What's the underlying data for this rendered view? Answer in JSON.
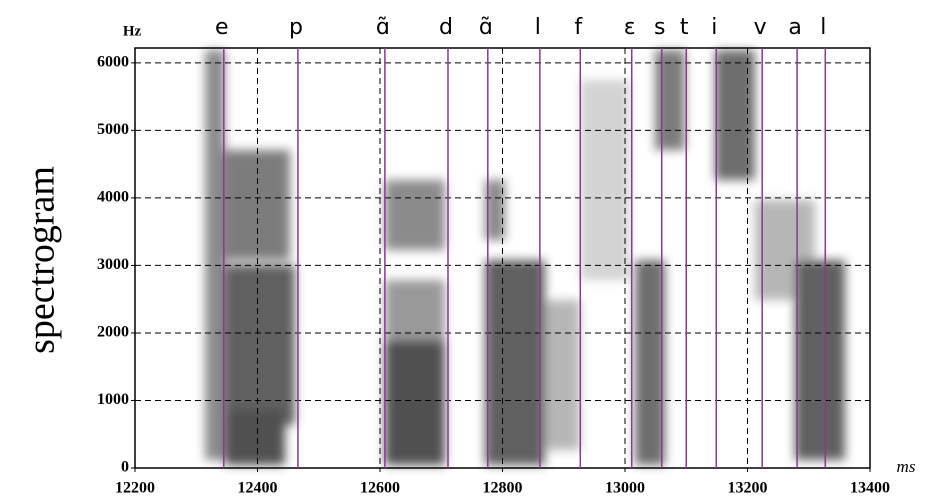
{
  "chart_data": {
    "type": "spectrogram",
    "y_label": "spectrogram",
    "y_unit": "Hz",
    "x_unit": "ms",
    "xlim": [
      12200,
      13400
    ],
    "ylim": [
      0,
      6220
    ],
    "xticks": [
      12200,
      12400,
      12600,
      12800,
      13000,
      13200,
      13400
    ],
    "yticks": [
      0,
      1000,
      2000,
      3000,
      4000,
      5000,
      6000
    ],
    "grid": true,
    "boundary_color": "#8a3a8a",
    "segments": [
      {
        "label": "e",
        "time": 12345
      },
      {
        "label": "p",
        "time": 12466
      },
      {
        "label": "ɑ̃",
        "time": 12608
      },
      {
        "label": "d",
        "time": 12711
      },
      {
        "label": "ɑ̃",
        "time": 12776
      },
      {
        "label": "l",
        "time": 12861
      },
      {
        "label": "f",
        "time": 12927
      },
      {
        "label": "ɛ",
        "time": 13011
      },
      {
        "label": "s",
        "time": 13060
      },
      {
        "label": "t",
        "time": 13100
      },
      {
        "label": "i",
        "time": 13149
      },
      {
        "label": "v",
        "time": 13224
      },
      {
        "label": "a",
        "time": 13281
      },
      {
        "label": "l",
        "time": 13327
      }
    ]
  }
}
